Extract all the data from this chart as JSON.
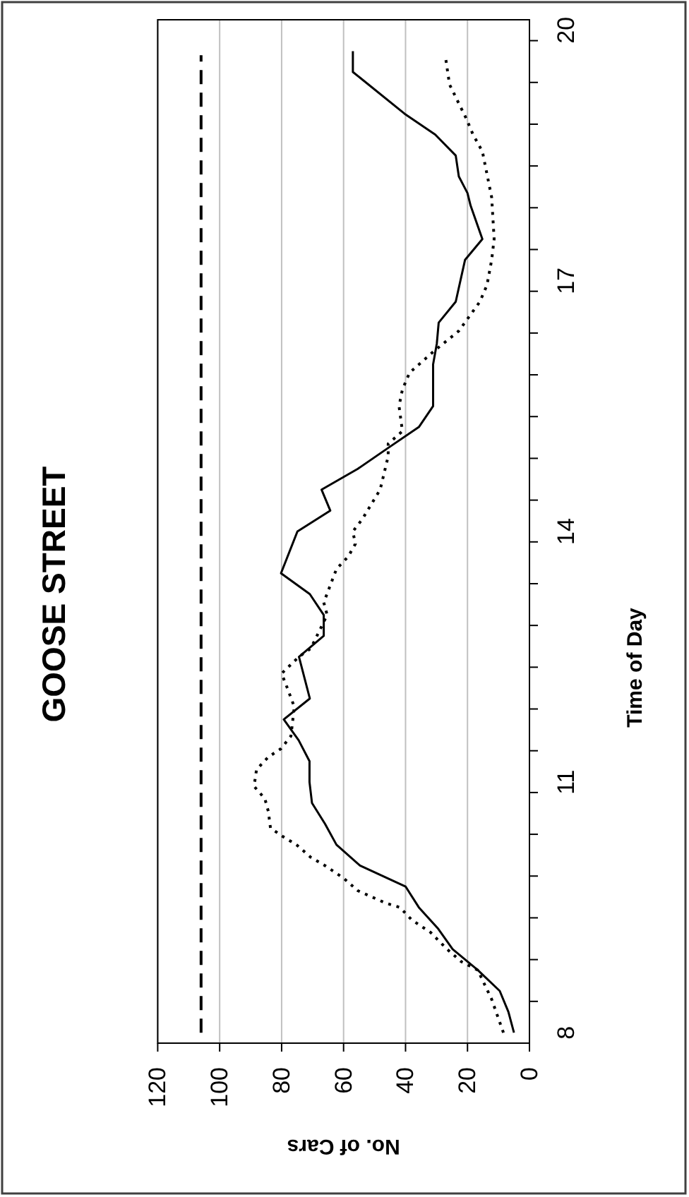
{
  "chart_data": {
    "type": "line",
    "orientation": "horizontal",
    "title": "GOOSE STREET",
    "xlabel": "No. of Cars",
    "ylabel": "Time of Day",
    "ylim": [
      7.875,
      20.125
    ],
    "yticks": [
      8,
      11,
      14,
      17,
      20,
      {
        "value": 8.375,
        "label": null
      },
      {
        "value": 8.875,
        "label": null
      },
      {
        "value": 9.375,
        "label": null
      },
      {
        "value": 9.875,
        "label": null
      },
      {
        "value": 10.375,
        "label": null
      },
      {
        "value": 10.875,
        "label": null
      },
      {
        "value": 11.375,
        "label": null
      },
      {
        "value": 11.875,
        "label": null
      },
      {
        "value": 12.375,
        "label": null
      },
      {
        "value": 12.875,
        "label": null
      },
      {
        "value": 13.375,
        "label": null
      },
      {
        "value": 13.875,
        "label": null
      },
      {
        "value": 14.375,
        "label": null
      },
      {
        "value": 14.875,
        "label": null
      },
      {
        "value": 15.375,
        "label": null
      },
      {
        "value": 15.875,
        "label": null
      },
      {
        "value": 16.375,
        "label": null
      },
      {
        "value": 16.875,
        "label": null
      },
      {
        "value": 17.375,
        "label": null
      },
      {
        "value": 17.875,
        "label": null
      },
      {
        "value": 18.375,
        "label": null
      },
      {
        "value": 18.875,
        "label": null
      },
      {
        "value": 19.375,
        "label": null
      },
      {
        "value": 19.875,
        "label": null
      }
    ],
    "xlim": [
      120,
      0
    ],
    "xticks": [
      120,
      100,
      80,
      60,
      40,
      20,
      0
    ],
    "grid": "x",
    "marker": "none",
    "series": [
      {
        "color": "#000000",
        "line_style": "solid",
        "x": [
          8,
          8.25,
          8.5,
          8.75,
          9,
          9.25,
          9.5,
          9.75,
          10,
          10.25,
          10.5,
          10.75,
          11,
          11.25,
          11.5,
          11.75,
          12,
          12.5,
          12.75,
          13,
          13.25,
          13.5,
          14,
          14.25,
          14.5,
          14.75,
          15,
          15.25,
          15.5,
          15.75,
          16,
          16.25,
          16.5,
          16.75,
          17.25,
          17.5,
          17.9,
          18.05,
          18.25,
          18.5,
          18.75,
          19,
          19.5,
          19.75
        ],
        "values": [
          5,
          6.8,
          9.6,
          16.7,
          24.8,
          29.6,
          35.7,
          40,
          54.7,
          62.3,
          66,
          70.2,
          71,
          71,
          74.5,
          79.3,
          70.9,
          74.4,
          66.4,
          66.4,
          70.9,
          80.2,
          74.9,
          64.3,
          67.1,
          55.4,
          45.6,
          35.7,
          31.1,
          31.1,
          31.1,
          29.9,
          29.3,
          23.8,
          20.8,
          15.2,
          19,
          20,
          22.8,
          23.8,
          30.4,
          40.3,
          57,
          57
        ]
      },
      {
        "color": "#000000",
        "line_style": "dotted",
        "x": [
          8,
          8.4,
          8.75,
          8.85,
          9,
          9.2,
          9.35,
          9.5,
          9.55,
          9.7,
          9.85,
          10,
          10.1,
          10.25,
          10.35,
          10.45,
          10.65,
          10.8,
          10.95,
          11.15,
          11.3,
          11.4,
          11.55,
          11.9,
          12.1,
          12.3,
          12.5,
          12.6,
          13,
          13.15,
          13.55,
          13.7,
          13.85,
          14,
          14.15,
          14.5,
          14.9,
          15.05,
          15.2,
          15.5,
          15.7,
          15.9,
          16.15,
          16.4,
          16.75,
          16.95,
          17.25,
          17.5,
          18,
          18.55,
          18.75,
          18.95,
          19.35,
          19.65
        ],
        "values": [
          8.4,
          12.2,
          16.7,
          22,
          26.6,
          31.9,
          38,
          41.8,
          46.3,
          55.4,
          60,
          66,
          70.6,
          75.2,
          79.7,
          83.6,
          84.3,
          85.4,
          88.9,
          88.1,
          84.3,
          80.2,
          77,
          75.9,
          77.9,
          80,
          74.4,
          70.6,
          65.3,
          66.4,
          62.3,
          58.5,
          56.2,
          57,
          53.9,
          48.2,
          45.6,
          45.6,
          41,
          42.1,
          41,
          38.7,
          31.1,
          22.8,
          16,
          13.7,
          12.2,
          11.4,
          12.2,
          15.2,
          18.2,
          20.5,
          25.8,
          27
        ]
      },
      {
        "color": "#000000",
        "line_style": "dashed",
        "x": [
          8,
          19.7
        ],
        "values": [
          106,
          106
        ]
      }
    ]
  }
}
